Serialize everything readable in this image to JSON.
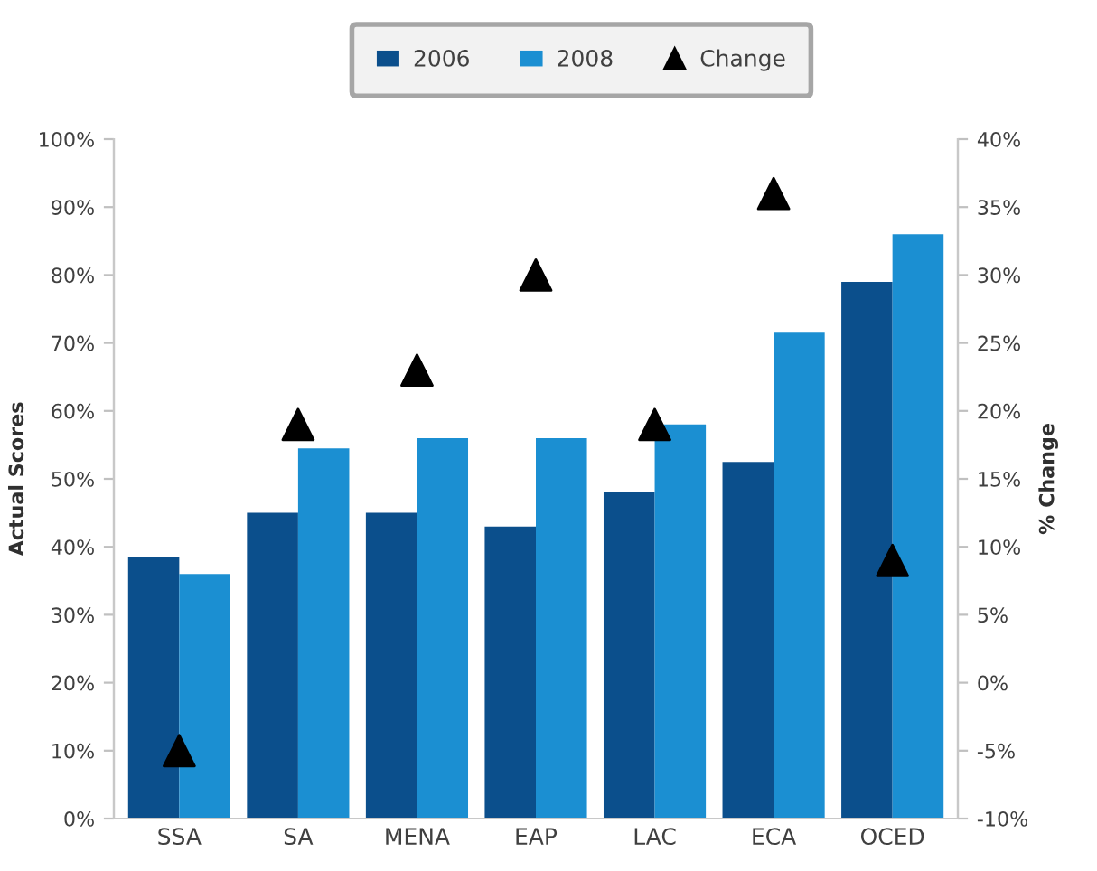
{
  "chart_data": {
    "type": "bar",
    "categories": [
      "SSA",
      "SA",
      "MENA",
      "EAP",
      "LAC",
      "ECA",
      "OCED"
    ],
    "series": [
      {
        "name": "2006",
        "color": "#0b4f8c",
        "values": [
          38.5,
          45,
          45,
          43,
          48,
          52.5,
          79
        ]
      },
      {
        "name": "2008",
        "color": "#1b8fd2",
        "values": [
          36,
          54.5,
          56,
          56,
          58,
          71.5,
          86
        ]
      },
      {
        "name": "Change",
        "type": "scatter",
        "axis": "y2",
        "marker": "triangle",
        "color": "#000000",
        "values": [
          -5,
          19,
          23,
          30,
          19,
          36,
          9
        ]
      }
    ],
    "ylabel": "Actual Scores",
    "y2label": "% Change",
    "ylim": [
      0,
      100
    ],
    "yticks": [
      {
        "value": 0,
        "label": "0%"
      },
      {
        "value": 10,
        "label": "10%"
      },
      {
        "value": 20,
        "label": "20%"
      },
      {
        "value": 30,
        "label": "30%"
      },
      {
        "value": 40,
        "label": "40%"
      },
      {
        "value": 50,
        "label": "50%"
      },
      {
        "value": 60,
        "label": "60%"
      },
      {
        "value": 70,
        "label": "70%"
      },
      {
        "value": 80,
        "label": "80%"
      },
      {
        "value": 90,
        "label": "90%"
      },
      {
        "value": 100,
        "label": "100%"
      }
    ],
    "y2lim": [
      -10,
      40
    ],
    "y2ticks": [
      {
        "value": -10,
        "label": "-10%"
      },
      {
        "value": -5,
        "label": "-5%"
      },
      {
        "value": 0,
        "label": "0%"
      },
      {
        "value": 5,
        "label": "5%"
      },
      {
        "value": 10,
        "label": "10%"
      },
      {
        "value": 15,
        "label": "15%"
      },
      {
        "value": 20,
        "label": "20%"
      },
      {
        "value": 25,
        "label": "25%"
      },
      {
        "value": 30,
        "label": "30%"
      },
      {
        "value": 35,
        "label": "35%"
      },
      {
        "value": 40,
        "label": "40%"
      }
    ],
    "legend": "top",
    "grid": false
  }
}
